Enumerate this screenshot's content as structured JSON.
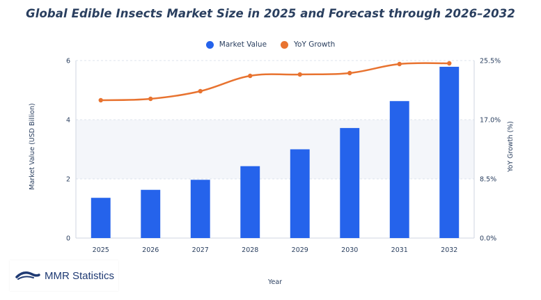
{
  "chart_data": {
    "type": "bar",
    "title": "Global Edible Insects Market Size in 2025 and Forecast through 2026–2032",
    "xlabel": "Year",
    "ylabel": "Market Value (USD Billion)",
    "y2label": "YoY Growth (%)",
    "categories": [
      "2025",
      "2026",
      "2027",
      "2028",
      "2029",
      "2030",
      "2031",
      "2032"
    ],
    "series": [
      {
        "name": "Market Value",
        "type": "bar",
        "axis": "left",
        "color": "#2563eb",
        "values": [
          1.36,
          1.63,
          1.97,
          2.43,
          3.0,
          3.72,
          4.63,
          5.79
        ]
      },
      {
        "name": "YoY Growth",
        "type": "line",
        "axis": "right",
        "color": "#e87330",
        "values": [
          19.8,
          20.0,
          21.1,
          23.3,
          23.5,
          23.7,
          25.0,
          25.1
        ]
      }
    ],
    "ylim": [
      0,
      6
    ],
    "yticks": [
      "0",
      "2",
      "4",
      "6"
    ],
    "y2lim": [
      0,
      25.5
    ],
    "y2ticks": [
      "0.0%",
      "8.5%",
      "17.0%",
      "25.5%"
    ],
    "legend_position": "top-center",
    "grid": true
  },
  "logo": {
    "text": "MMR Statistics"
  }
}
